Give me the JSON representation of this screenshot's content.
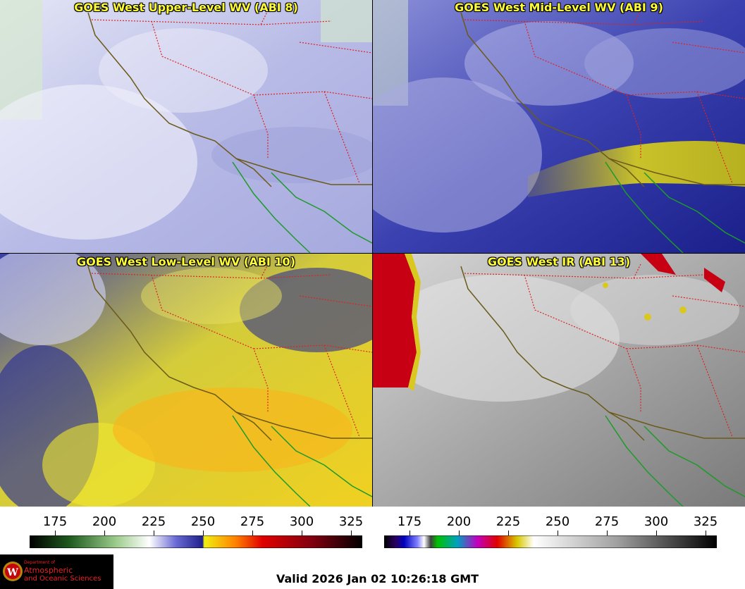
{
  "panels": [
    {
      "title": "GOES West Upper-Level WV (ABI 8)"
    },
    {
      "title": "GOES West Mid-Level WV (ABI 9)"
    },
    {
      "title": "GOES West Low-Level WV (ABI 10)"
    },
    {
      "title": "GOES West IR (ABI 13)"
    }
  ],
  "colorbar_wv": {
    "ticks": [
      "175",
      "200",
      "225",
      "250",
      "275",
      "300",
      "325"
    ]
  },
  "colorbar_ir": {
    "ticks": [
      "175",
      "200",
      "225",
      "250",
      "275",
      "300",
      "325"
    ]
  },
  "logo": {
    "line1": "Department of",
    "line2": "Atmospheric",
    "line3": "and Oceanic Sciences",
    "emblem": "W"
  },
  "valid_time": "Valid 2026 Jan 02 10:26:18 GMT"
}
